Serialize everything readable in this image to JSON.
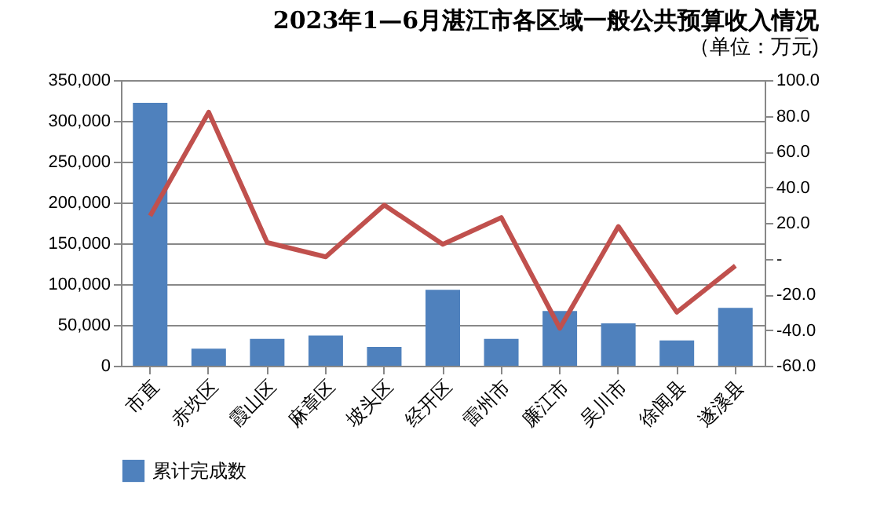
{
  "chart_data": {
    "type": "bar",
    "title": "2023年1—6月湛江市各区域一般公共预算收入情况",
    "subtitle": "（单位：万元)",
    "categories": [
      "市直",
      "赤坎区",
      "霞山区",
      "麻章区",
      "坡头区",
      "经开区",
      "雷州市",
      "廉江市",
      "吴川市",
      "徐闻县",
      "遂溪县"
    ],
    "series": [
      {
        "name": "累计完成数",
        "color": "#4f81bd",
        "values": [
          322000,
          21000,
          33000,
          37000,
          23000,
          93000,
          33000,
          67000,
          52000,
          31000,
          71000
        ]
      },
      {
        "type": "line",
        "axis": "y2",
        "color": "#c0504d",
        "values": [
          24,
          82,
          9,
          1,
          30,
          8,
          23,
          -39,
          18,
          -30,
          -4
        ]
      }
    ],
    "ylim": [
      0,
      350000
    ],
    "yticks": [
      {
        "value": 0,
        "label": "0"
      },
      {
        "value": 50000,
        "label": "50,000"
      },
      {
        "value": 100000,
        "label": "100,000"
      },
      {
        "value": 150000,
        "label": "150,000"
      },
      {
        "value": 200000,
        "label": "200,000"
      },
      {
        "value": 250000,
        "label": "250,000"
      },
      {
        "value": 300000,
        "label": "300,000"
      },
      {
        "value": 350000,
        "label": "350,000"
      }
    ],
    "y2lim": [
      -60,
      100
    ],
    "y2ticks": [
      {
        "value": -60,
        "label": "-60.0"
      },
      {
        "value": -40,
        "label": "-40.0"
      },
      {
        "value": -20,
        "label": "-20.0"
      },
      {
        "value": 0,
        "label": "-"
      },
      {
        "value": 20,
        "label": "20.0"
      },
      {
        "value": 40,
        "label": "40.0"
      },
      {
        "value": 60,
        "label": "60.0"
      },
      {
        "value": 80,
        "label": "80.0"
      },
      {
        "value": 100,
        "label": "100.0"
      }
    ],
    "grid": "y",
    "legend": "bottom",
    "marker": "none",
    "line_style": "solid"
  }
}
